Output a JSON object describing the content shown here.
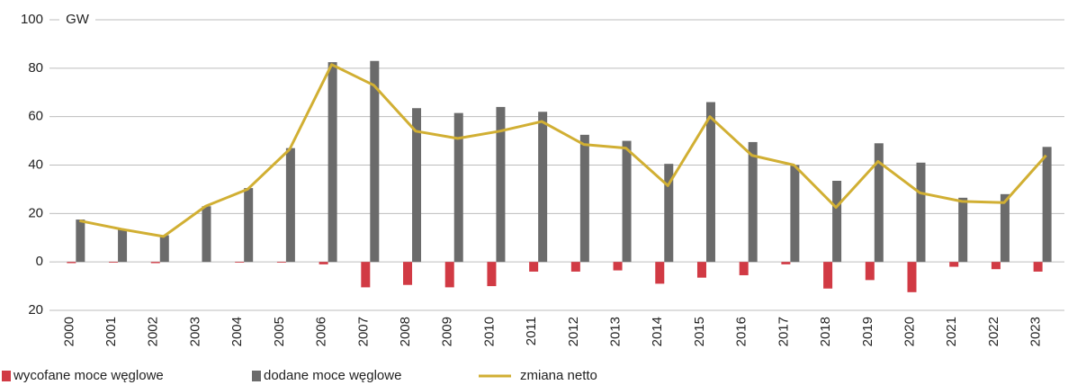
{
  "chart_data": {
    "type": "bar",
    "y_label": "GW",
    "categories": [
      "2000",
      "2001",
      "2002",
      "2003",
      "2004",
      "2005",
      "2006",
      "2007",
      "2008",
      "2009",
      "2010",
      "2011",
      "2012",
      "2013",
      "2014",
      "2015",
      "2016",
      "2017",
      "2018",
      "2019",
      "2020",
      "2021",
      "2022",
      "2023"
    ],
    "series": [
      {
        "name": "wycofane moce węglowe",
        "type": "bar",
        "color": "#d13a44",
        "values": [
          -0.5,
          -0.3,
          -0.5,
          0,
          -0.3,
          -0.3,
          -1,
          -10.5,
          -9.5,
          -10.5,
          -10,
          -4,
          -4,
          -3.5,
          -9,
          -6.5,
          -5.5,
          -1,
          -11,
          -7.5,
          -12.5,
          -2,
          -3,
          -4
        ]
      },
      {
        "name": "dodane moce węglowe",
        "type": "bar",
        "color": "#6b6b6b",
        "values": [
          17.5,
          13.5,
          11,
          23,
          30.5,
          47,
          82.5,
          83,
          63.5,
          61.5,
          64,
          62,
          52.5,
          50,
          40.5,
          66,
          49.5,
          40,
          33.5,
          49,
          41,
          26.5,
          28,
          47.5
        ]
      },
      {
        "name": "zmiana netto",
        "type": "line",
        "color": "#d1af33",
        "values": [
          17,
          13.5,
          10.5,
          23,
          30,
          46.5,
          81.5,
          73,
          54,
          51,
          54,
          58,
          48.5,
          47,
          31.5,
          60,
          44,
          40,
          22.5,
          41.5,
          28.5,
          25,
          24.5,
          44
        ]
      }
    ],
    "ylim": [
      -20,
      100
    ],
    "yticks": [
      {
        "value": -20,
        "label": "20"
      },
      0,
      20,
      40,
      60,
      80,
      100
    ],
    "grid": true,
    "legend": "bottom"
  }
}
